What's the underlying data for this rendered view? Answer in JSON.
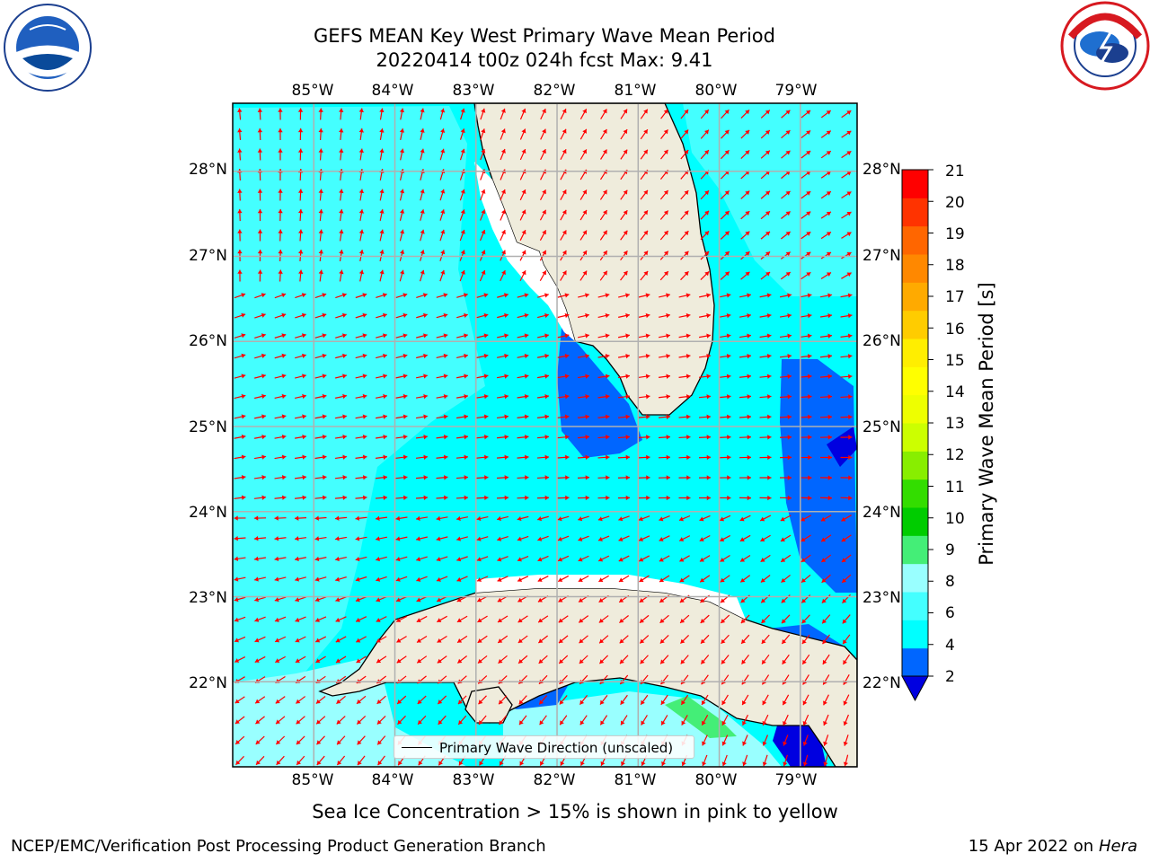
{
  "title": {
    "line1": "GEFS MEAN Key West Primary Wave Mean Period",
    "line2": "20220414 t00z 024h fcst   Max: 9.41"
  },
  "logos": {
    "left": "noaa-logo",
    "right": "nws-logo"
  },
  "map": {
    "lon_range": [
      -86.0,
      -78.3
    ],
    "lat_range": [
      21.0,
      28.8
    ],
    "lon_ticks": [
      "85°W",
      "84°W",
      "83°W",
      "82°W",
      "81°W",
      "80°W",
      "79°W"
    ],
    "lat_ticks": [
      "28°N",
      "27°N",
      "26°N",
      "25°N",
      "24°N",
      "23°N",
      "22°N"
    ],
    "grid": true,
    "land_color": "#efecdc",
    "arrow_color": "#ff0000",
    "legend_label": "Primary Wave Direction (unscaled)"
  },
  "colorbar": {
    "label": "Primary Wave Mean Period [s]",
    "ticks": [
      "21",
      "20",
      "19",
      "18",
      "17",
      "16",
      "15",
      "14",
      "13",
      "12",
      "11",
      "10",
      "9",
      "8",
      "6",
      "4",
      "2"
    ],
    "colors": [
      "#0000e0",
      "#0066ff",
      "#00ffff",
      "#44ffff",
      "#99ffff",
      "#44ee77",
      "#00cc00",
      "#33dd00",
      "#88ee00",
      "#ccff00",
      "#eeff00",
      "#ffff00",
      "#ffee00",
      "#ffcc00",
      "#ffaa00",
      "#ff8800",
      "#ff6600",
      "#ff3300",
      "#ff0000"
    ]
  },
  "caption": "Sea Ice Concentration > 15% is shown in pink to yellow",
  "footer": {
    "left": "NCEP/EMC/Verification Post Processing Product Generation Branch",
    "right_date": "15 Apr 2022 on ",
    "right_host": "Hera"
  }
}
